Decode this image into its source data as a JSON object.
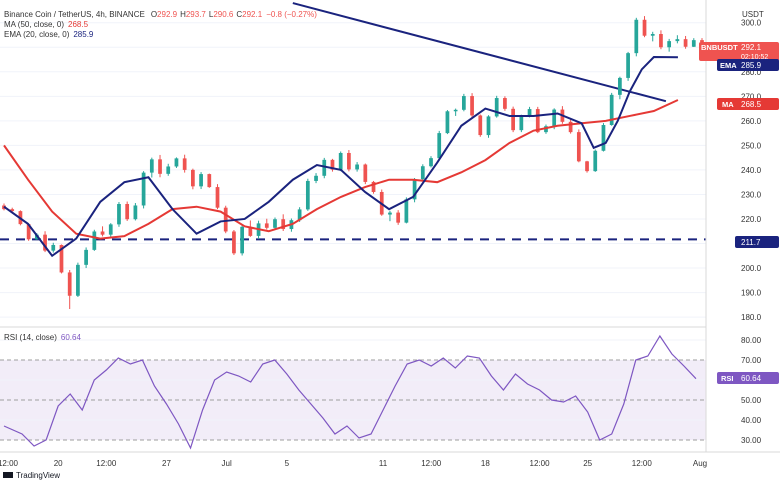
{
  "header": {
    "published": "",
    "symbol_line": "Binance Coin / TetherUS, 4h, BINANCE",
    "ohlc": [
      {
        "label": "O",
        "value": "292.9"
      },
      {
        "label": "H",
        "value": "293.7"
      },
      {
        "label": "L",
        "value": "290.6"
      },
      {
        "label": "C",
        "value": "292.1"
      }
    ],
    "change": "−0.8 (−0.27%)",
    "ma_label": "MA (50, close, 0)",
    "ma_value": "268.5",
    "ema_label": "EMA (20, close, 0)",
    "ema_value": "285.9"
  },
  "colors": {
    "up": "#26a69a",
    "down": "#ef5350",
    "ema": "#1a237e",
    "ma": "#e53935",
    "rsi": "#7e57c2",
    "level": "#1a237e",
    "trendline": "#1a237e"
  },
  "price_axis": {
    "currency": "USDT",
    "ticks": [
      180.0,
      190.0,
      200.0,
      210.0,
      220.0,
      230.0,
      240.0,
      250.0,
      260.0,
      270.0,
      280.0,
      290.0,
      300.0
    ],
    "tick_labels": [
      "180.0",
      "190.0",
      "200.0",
      "210.0",
      "220.0",
      "230.0",
      "240.0",
      "250.0",
      "260.0",
      "270.0",
      "280.0",
      "290.0",
      "300.0"
    ],
    "range": [
      178,
      306
    ]
  },
  "badges": {
    "symbol": {
      "name": "BNBUSDT",
      "value": "292.1",
      "countdown": "02:10:52"
    },
    "ema": {
      "name": "EMA",
      "value": "285.9"
    },
    "ma": {
      "name": "MA",
      "value": "268.5"
    },
    "level": {
      "value": "211.7"
    }
  },
  "rsi": {
    "label": "RSI (14, close)",
    "value": "60.64",
    "badge": "RSI",
    "ticks": [
      "30.00",
      "40.00",
      "50.00",
      "60.00",
      "70.00",
      "80.00"
    ],
    "tick_values": [
      30,
      40,
      50,
      60,
      70,
      80
    ],
    "range": [
      25,
      85
    ],
    "band": [
      30,
      70
    ]
  },
  "time_axis": {
    "labels": [
      "12:00",
      "20",
      "12:00",
      "27",
      "Jul",
      "5",
      "11",
      "12:00",
      "18",
      "12:00",
      "25",
      "12:00",
      "Aug"
    ],
    "label_index": [
      0,
      9,
      17,
      27,
      37,
      47,
      63,
      71,
      80,
      89,
      97,
      106,
      116
    ]
  },
  "branding": "TradingView",
  "chart_data": {
    "type": "candlestick",
    "title": "Binance Coin / TetherUS, 4h, BINANCE",
    "ylabel": "USDT",
    "ylim": [
      178,
      306
    ],
    "horizontal_level": 211.7,
    "trendline": [
      [
        48,
        308
      ],
      [
        110,
        268
      ]
    ],
    "ma50": [
      [
        0,
        250
      ],
      [
        4,
        236
      ],
      [
        8,
        223
      ],
      [
        12,
        214
      ],
      [
        16,
        212
      ],
      [
        20,
        213
      ],
      [
        24,
        218
      ],
      [
        28,
        224
      ],
      [
        32,
        225
      ],
      [
        36,
        223
      ],
      [
        40,
        217
      ],
      [
        44,
        215
      ],
      [
        48,
        218
      ],
      [
        52,
        224
      ],
      [
        56,
        229
      ],
      [
        60,
        233
      ],
      [
        64,
        236
      ],
      [
        68,
        236
      ],
      [
        72,
        235
      ],
      [
        76,
        239
      ],
      [
        80,
        244
      ],
      [
        84,
        251
      ],
      [
        88,
        256
      ],
      [
        92,
        258
      ],
      [
        96,
        259
      ],
      [
        100,
        260
      ],
      [
        104,
        262
      ],
      [
        108,
        264
      ],
      [
        112,
        268.5
      ]
    ],
    "ema20": [
      [
        0,
        225
      ],
      [
        4,
        218
      ],
      [
        8,
        205
      ],
      [
        12,
        212
      ],
      [
        16,
        227
      ],
      [
        20,
        235
      ],
      [
        24,
        237
      ],
      [
        28,
        224
      ],
      [
        32,
        214
      ],
      [
        36,
        219
      ],
      [
        40,
        220
      ],
      [
        44,
        227
      ],
      [
        48,
        236
      ],
      [
        52,
        242
      ],
      [
        56,
        240
      ],
      [
        60,
        231
      ],
      [
        64,
        224
      ],
      [
        68,
        229
      ],
      [
        72,
        243
      ],
      [
        76,
        258
      ],
      [
        80,
        265
      ],
      [
        84,
        262
      ],
      [
        88,
        262
      ],
      [
        92,
        263
      ],
      [
        96,
        259
      ],
      [
        98,
        249
      ],
      [
        100,
        251
      ],
      [
        102,
        260
      ],
      [
        104,
        272
      ],
      [
        106,
        281
      ],
      [
        108,
        286
      ],
      [
        112,
        285.9
      ]
    ],
    "ohlc": [
      [
        225.5,
        226.3,
        223.5,
        224.0
      ],
      [
        224.0,
        224.6,
        222.5,
        223.2
      ],
      [
        223.2,
        223.5,
        217.4,
        217.9
      ],
      [
        217.9,
        218.0,
        211.1,
        211.7
      ],
      [
        211.7,
        214.2,
        211.5,
        213.6
      ],
      [
        213.6,
        215.0,
        206.5,
        207.1
      ],
      [
        207.1,
        210.3,
        206.3,
        209.4
      ],
      [
        209.4,
        209.6,
        197.8,
        198.2
      ],
      [
        198.2,
        199.2,
        183.3,
        188.7
      ],
      [
        188.7,
        202.2,
        188.2,
        201.3
      ],
      [
        201.3,
        208.4,
        200.0,
        207.4
      ],
      [
        207.4,
        215.6,
        207.0,
        214.9
      ],
      [
        214.9,
        217.0,
        212.9,
        213.6
      ],
      [
        213.6,
        218.3,
        212.3,
        217.8
      ],
      [
        217.8,
        226.9,
        216.8,
        226.1
      ],
      [
        226.1,
        227.1,
        219.2,
        219.9
      ],
      [
        219.9,
        226.5,
        219.4,
        225.5
      ],
      [
        225.5,
        239.5,
        224.3,
        238.9
      ],
      [
        238.9,
        245.0,
        236.9,
        244.3
      ],
      [
        244.3,
        246.1,
        237.0,
        238.4
      ],
      [
        238.4,
        242.5,
        237.6,
        241.4
      ],
      [
        241.4,
        245.1,
        240.8,
        244.7
      ],
      [
        244.7,
        246.2,
        238.9,
        240.0
      ],
      [
        240.0,
        240.5,
        232.1,
        233.3
      ],
      [
        233.3,
        239.1,
        232.2,
        238.3
      ],
      [
        238.3,
        238.5,
        232.7,
        233.0
      ],
      [
        233.0,
        234.2,
        224.0,
        224.6
      ],
      [
        224.6,
        225.4,
        214.2,
        214.9
      ],
      [
        214.9,
        215.5,
        205.3,
        206.0
      ],
      [
        206.0,
        217.5,
        205.1,
        216.8
      ],
      [
        216.8,
        219.4,
        212.7,
        213.1
      ],
      [
        213.1,
        219.3,
        211.8,
        218.2
      ],
      [
        218.2,
        220.1,
        215.7,
        216.4
      ],
      [
        216.4,
        220.6,
        215.5,
        219.9
      ],
      [
        219.9,
        221.9,
        215.1,
        215.9
      ],
      [
        215.9,
        220.2,
        214.8,
        219.5
      ],
      [
        219.5,
        224.8,
        218.8,
        223.9
      ],
      [
        223.9,
        236.4,
        223.3,
        235.5
      ],
      [
        235.5,
        238.7,
        234.6,
        237.6
      ],
      [
        237.6,
        244.9,
        236.6,
        244.1
      ],
      [
        244.1,
        244.5,
        239.3,
        240.1
      ],
      [
        240.1,
        247.5,
        239.5,
        246.9
      ],
      [
        246.9,
        248.1,
        239.4,
        240.2
      ],
      [
        240.2,
        243.2,
        239.3,
        242.2
      ],
      [
        242.2,
        242.6,
        234.2,
        235.1
      ],
      [
        235.1,
        235.5,
        230.3,
        231.0
      ],
      [
        231.0,
        232.0,
        221.3,
        221.8
      ],
      [
        221.8,
        223.3,
        219.1,
        222.6
      ],
      [
        222.6,
        223.6,
        217.6,
        218.5
      ],
      [
        218.5,
        228.8,
        218.2,
        228.0
      ],
      [
        228.0,
        236.7,
        226.8,
        236.2
      ],
      [
        236.2,
        242.3,
        235.3,
        241.5
      ],
      [
        241.5,
        245.6,
        241.0,
        244.8
      ],
      [
        244.8,
        255.9,
        244.4,
        255.0
      ],
      [
        255.0,
        264.4,
        254.6,
        263.9
      ],
      [
        263.9,
        265.0,
        262.0,
        264.5
      ],
      [
        264.5,
        271.0,
        263.9,
        270.1
      ],
      [
        270.1,
        271.3,
        261.4,
        262.2
      ],
      [
        262.2,
        262.6,
        253.5,
        254.2
      ],
      [
        254.2,
        262.3,
        253.1,
        261.8
      ],
      [
        261.8,
        270.2,
        261.3,
        269.3
      ],
      [
        269.3,
        270.0,
        264.1,
        264.9
      ],
      [
        264.9,
        265.8,
        255.4,
        256.2
      ],
      [
        256.2,
        262.5,
        255.4,
        261.9
      ],
      [
        261.9,
        265.7,
        261.4,
        264.8
      ],
      [
        264.8,
        265.7,
        255.0,
        255.4
      ],
      [
        255.4,
        258.5,
        254.7,
        257.8
      ],
      [
        257.8,
        265.1,
        256.6,
        264.6
      ],
      [
        264.6,
        266.0,
        258.8,
        259.6
      ],
      [
        259.6,
        260.9,
        254.8,
        255.4
      ],
      [
        255.4,
        256.5,
        243.1,
        243.5
      ],
      [
        243.5,
        243.7,
        238.9,
        239.5
      ],
      [
        239.5,
        248.3,
        239.2,
        247.8
      ],
      [
        247.8,
        259.1,
        247.5,
        258.3
      ],
      [
        258.3,
        271.4,
        258.0,
        270.6
      ],
      [
        270.6,
        278.0,
        268.8,
        277.5
      ],
      [
        277.5,
        288.1,
        276.3,
        287.6
      ],
      [
        287.6,
        302.0,
        286.3,
        301.2
      ],
      [
        301.2,
        302.7,
        294.1,
        294.7
      ],
      [
        294.7,
        296.3,
        292.4,
        295.4
      ],
      [
        295.4,
        296.9,
        289.2,
        290.0
      ],
      [
        290.0,
        293.4,
        288.2,
        292.5
      ],
      [
        292.5,
        294.9,
        291.6,
        293.3
      ],
      [
        293.3,
        294.6,
        289.4,
        290.2
      ],
      [
        290.2,
        293.7,
        290.1,
        292.9
      ],
      [
        292.9,
        293.7,
        290.6,
        292.1
      ]
    ],
    "rsi": [
      [
        0,
        37
      ],
      [
        3,
        33
      ],
      [
        5,
        27
      ],
      [
        7,
        30
      ],
      [
        9,
        47
      ],
      [
        11,
        53
      ],
      [
        13,
        45
      ],
      [
        15,
        60
      ],
      [
        17,
        65
      ],
      [
        19,
        71
      ],
      [
        21,
        68
      ],
      [
        23,
        70
      ],
      [
        25,
        57
      ],
      [
        27,
        48
      ],
      [
        29,
        38
      ],
      [
        31,
        26
      ],
      [
        33,
        45
      ],
      [
        35,
        60
      ],
      [
        37,
        64
      ],
      [
        39,
        62
      ],
      [
        41,
        59
      ],
      [
        43,
        68
      ],
      [
        45,
        70
      ],
      [
        47,
        63
      ],
      [
        49,
        55
      ],
      [
        51,
        48
      ],
      [
        53,
        41
      ],
      [
        55,
        33
      ],
      [
        57,
        37
      ],
      [
        59,
        31
      ],
      [
        61,
        33
      ],
      [
        63,
        45
      ],
      [
        65,
        57
      ],
      [
        67,
        68
      ],
      [
        69,
        70
      ],
      [
        71,
        67
      ],
      [
        73,
        71
      ],
      [
        75,
        66
      ],
      [
        77,
        72
      ],
      [
        79,
        71
      ],
      [
        81,
        62
      ],
      [
        83,
        55
      ],
      [
        85,
        63
      ],
      [
        87,
        58
      ],
      [
        89,
        55
      ],
      [
        91,
        50
      ],
      [
        93,
        49
      ],
      [
        95,
        52
      ],
      [
        97,
        44
      ],
      [
        99,
        30
      ],
      [
        101,
        33
      ],
      [
        103,
        48
      ],
      [
        105,
        70
      ],
      [
        107,
        72
      ],
      [
        109,
        82
      ],
      [
        111,
        73
      ],
      [
        113,
        67
      ],
      [
        115,
        60.64
      ]
    ]
  }
}
